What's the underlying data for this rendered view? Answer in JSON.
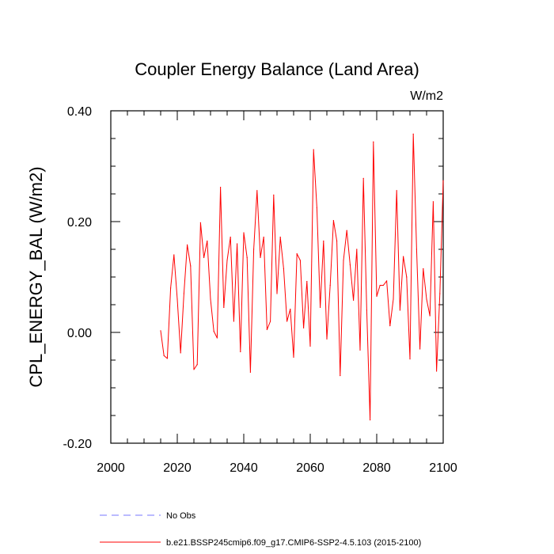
{
  "chart_data": {
    "type": "line",
    "title": "Coupler Energy Balance (Land Area)",
    "units": "W/m2",
    "xlabel": "",
    "ylabel": "CPL_ENERGY_BAL  (W/m2)",
    "xlim": [
      2000,
      2100
    ],
    "ylim": [
      -0.2,
      0.4
    ],
    "x_ticks": [
      2000,
      2020,
      2040,
      2060,
      2080,
      2100
    ],
    "x_tick_labels": [
      "2000",
      "2020",
      "2040",
      "2060",
      "2080",
      "2100"
    ],
    "y_ticks": [
      -0.2,
      0.0,
      0.2,
      0.4
    ],
    "y_tick_labels": [
      "-0.20",
      "0.00",
      "0.20",
      "0.40"
    ],
    "series": [
      {
        "name": "b.e21.BSSP245cmip6.f09_g17.CMIP6-SSP2-4.5.103 (2015-2100)",
        "color": "#ff0000",
        "style": "solid",
        "x": [
          2015,
          2016,
          2017,
          2018,
          2019,
          2020,
          2021,
          2022,
          2023,
          2024,
          2025,
          2026,
          2027,
          2028,
          2029,
          2030,
          2031,
          2032,
          2033,
          2034,
          2035,
          2036,
          2037,
          2038,
          2039,
          2040,
          2041,
          2042,
          2043,
          2044,
          2045,
          2046,
          2047,
          2048,
          2049,
          2050,
          2051,
          2052,
          2053,
          2054,
          2055,
          2056,
          2057,
          2058,
          2059,
          2060,
          2061,
          2062,
          2063,
          2064,
          2065,
          2066,
          2067,
          2068,
          2069,
          2070,
          2071,
          2072,
          2073,
          2074,
          2075,
          2076,
          2077,
          2078,
          2079,
          2080,
          2081,
          2082,
          2083,
          2084,
          2085,
          2086,
          2087,
          2088,
          2089,
          2090,
          2091,
          2092,
          2093,
          2094,
          2095,
          2096,
          2097,
          2098,
          2099,
          2100
        ],
        "values": [
          0.003,
          -0.042,
          -0.047,
          0.08,
          0.14,
          0.06,
          -0.037,
          0.07,
          0.158,
          0.12,
          -0.067,
          -0.058,
          0.198,
          0.135,
          0.165,
          0.06,
          0.002,
          -0.01,
          0.262,
          0.045,
          0.13,
          0.172,
          0.02,
          0.16,
          -0.035,
          0.18,
          0.135,
          -0.072,
          0.15,
          0.256,
          0.135,
          0.172,
          0.005,
          0.02,
          0.248,
          0.07,
          0.172,
          0.115,
          0.02,
          0.042,
          -0.045,
          0.142,
          0.13,
          0.008,
          0.092,
          -0.025,
          0.33,
          0.225,
          0.045,
          0.165,
          -0.012,
          0.085,
          0.202,
          0.165,
          -0.078,
          0.13,
          0.184,
          0.122,
          0.058,
          0.15,
          -0.032,
          0.278,
          0.04,
          -0.158,
          0.344,
          0.065,
          0.085,
          0.085,
          0.093,
          0.012,
          0.06,
          0.256,
          0.04,
          0.137,
          0.1,
          -0.048,
          0.358,
          0.15,
          -0.03,
          0.115,
          0.06,
          0.03,
          0.236,
          -0.07,
          0.07,
          0.274
        ]
      }
    ],
    "legend": [
      {
        "label": "No Obs",
        "color": "#7777ff",
        "style": "dashed"
      },
      {
        "label": "b.e21.BSSP245cmip6.f09_g17.CMIP6-SSP2-4.5.103 (2015-2100)",
        "color": "#ff0000",
        "style": "solid"
      }
    ],
    "legend_position": "bottom-left"
  }
}
